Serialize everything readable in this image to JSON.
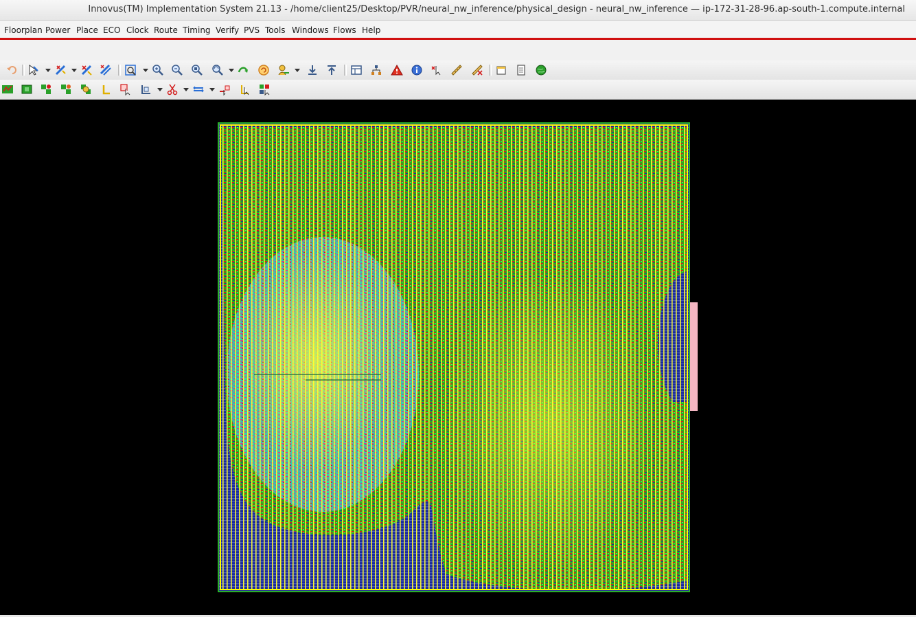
{
  "window": {
    "title": "Innovus(TM) Implementation System 21.13 - /home/client25/Desktop/PVR/neural_nw_inference/physical_design - neural_nw_inference — ip-172-31-28-96.ap-south-1.compute.internal"
  },
  "menu": {
    "items": [
      {
        "label": "Floorplan"
      },
      {
        "label": "Power"
      },
      {
        "label": "Place"
      },
      {
        "label": "ECO"
      },
      {
        "label": "Clock"
      },
      {
        "label": "Route"
      },
      {
        "label": "Timing"
      },
      {
        "label": "Verify"
      },
      {
        "label": "PVS"
      },
      {
        "label": "Tools"
      },
      {
        "label": "Windows"
      },
      {
        "label": "Flows"
      },
      {
        "label": "Help"
      }
    ]
  },
  "toolbar1": {
    "icons": [
      "undo-icon",
      "select-icon",
      "select-menu-icon",
      "add-wire-icon",
      "add-wire-menu-icon",
      "cut-wire-icon",
      "stretch-wire-icon",
      "fit-view-icon",
      "fit-view-menu-icon",
      "zoom-in-icon",
      "zoom-out-icon",
      "zoom-selected-icon",
      "zoom-area-icon",
      "zoom-area-menu-icon",
      "pan-icon",
      "redraw-icon",
      "highlight-icon",
      "highlight-menu-icon",
      "push-icon",
      "pop-icon",
      "layout-view-icon",
      "hierarchy-icon",
      "violation-icon",
      "info-icon",
      "deselect-icon",
      "ruler-icon",
      "clear-ruler-icon",
      "design-browser-icon",
      "notes-icon",
      "globe-icon"
    ]
  },
  "toolbar2": {
    "icons": [
      "floorplan-view-icon",
      "amoeba-view-icon",
      "place-view-icon",
      "place-instance-icon",
      "place-blockage-icon",
      "pin-icon",
      "move-icon",
      "resize-icon",
      "cut-icon",
      "align-icon",
      "snap-icon",
      "flip-icon",
      "group-icon"
    ]
  },
  "colors": {
    "canvas_background": "#000000",
    "die_outline": "#1f9a1f",
    "power_stripe": "#ffff00",
    "signal_wire_green": "#22c71f",
    "signal_wire_red": "#d21c1c",
    "metal_blue": "#1a2a9a",
    "cluster_cyan": "#3fd6c8",
    "cluster_magenta": "#d63f9f",
    "pin_block": "#f4b6c2",
    "menubar_accent": "#d01010"
  }
}
